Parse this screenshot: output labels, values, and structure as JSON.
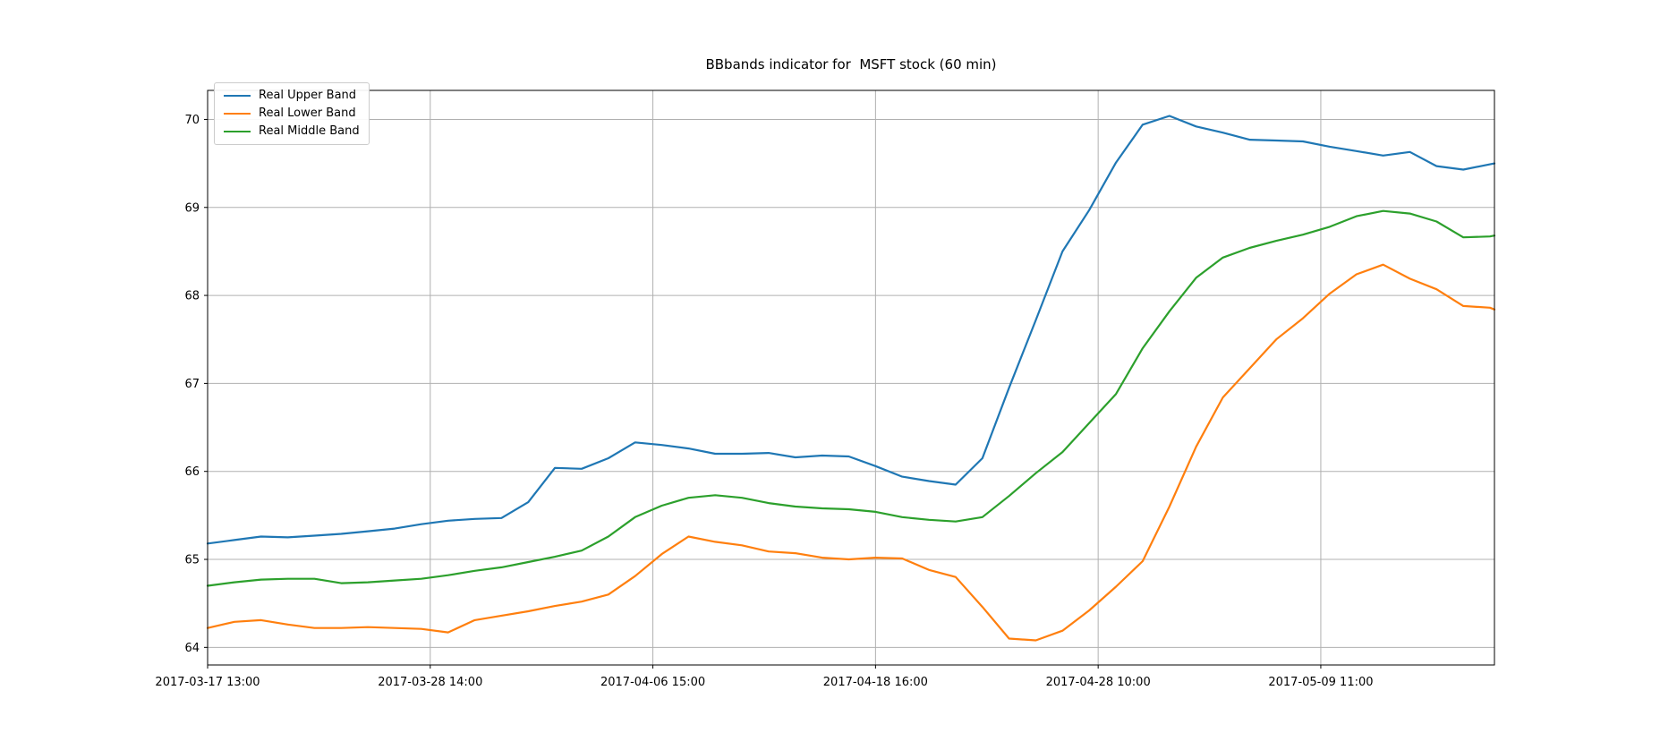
{
  "colors": {
    "background": "#ffffff",
    "grid": "#b0b0b0",
    "spine": "#000000",
    "text": "#000000",
    "upper_band": "#1f77b4",
    "lower_band": "#ff7f0e",
    "middle_band": "#2ca02c"
  },
  "chart_data": {
    "type": "line",
    "title": "BBbands indicator for  MSFT stock (60 min)",
    "xlabel": "",
    "ylabel": "",
    "grid": true,
    "legend_position": "upper left",
    "n_points": 290,
    "ylim": [
      63.8,
      70.33
    ],
    "y_ticks": [
      64,
      65,
      66,
      67,
      68,
      69,
      70
    ],
    "x_tick_indices": [
      0,
      50,
      100,
      150,
      200,
      250
    ],
    "x_tick_labels": [
      "2017-03-17 13:00",
      "2017-03-28 14:00",
      "2017-04-06 15:00",
      "2017-04-18 16:00",
      "2017-04-28 10:00",
      "2017-05-09 11:00"
    ],
    "series": [
      {
        "id": "upper",
        "name": "Real Upper Band",
        "color": "#1f77b4",
        "x": [
          0,
          6,
          12,
          18,
          24,
          30,
          36,
          42,
          48,
          54,
          60,
          66,
          72,
          78,
          84,
          90,
          96,
          102,
          108,
          114,
          120,
          126,
          132,
          138,
          144,
          150,
          156,
          162,
          168,
          174,
          180,
          186,
          192,
          198,
          204,
          210,
          216,
          222,
          228,
          234,
          240,
          246,
          252,
          258,
          264,
          270,
          276,
          282,
          288,
          289
        ],
        "values": [
          65.18,
          65.22,
          65.26,
          65.25,
          65.27,
          65.29,
          65.32,
          65.35,
          65.4,
          65.44,
          65.46,
          65.47,
          65.65,
          66.04,
          66.03,
          66.15,
          66.33,
          66.3,
          66.26,
          66.2,
          66.2,
          66.21,
          66.16,
          66.18,
          66.17,
          66.06,
          65.94,
          65.89,
          65.85,
          66.15,
          66.95,
          67.72,
          68.5,
          68.97,
          69.51,
          69.94,
          70.04,
          69.92,
          69.85,
          69.77,
          69.76,
          69.75,
          69.69,
          69.64,
          69.59,
          69.63,
          69.47,
          69.43,
          69.49,
          69.5
        ]
      },
      {
        "id": "lower",
        "name": "Real Lower Band",
        "color": "#ff7f0e",
        "x": [
          0,
          6,
          12,
          18,
          24,
          30,
          36,
          42,
          48,
          54,
          60,
          66,
          72,
          78,
          84,
          90,
          96,
          102,
          108,
          114,
          120,
          126,
          132,
          138,
          144,
          150,
          156,
          162,
          168,
          174,
          180,
          186,
          192,
          198,
          204,
          210,
          216,
          222,
          228,
          234,
          240,
          246,
          252,
          258,
          264,
          270,
          276,
          282,
          288,
          289
        ],
        "values": [
          64.22,
          64.29,
          64.31,
          64.26,
          64.22,
          64.22,
          64.23,
          64.22,
          64.21,
          64.17,
          64.31,
          64.36,
          64.41,
          64.47,
          64.52,
          64.6,
          64.81,
          65.06,
          65.26,
          65.2,
          65.16,
          65.09,
          65.07,
          65.02,
          65.0,
          65.02,
          65.01,
          64.88,
          64.8,
          64.46,
          64.1,
          64.08,
          64.19,
          64.42,
          64.69,
          64.98,
          65.6,
          66.28,
          66.84,
          67.17,
          67.5,
          67.74,
          68.02,
          68.24,
          68.35,
          68.19,
          68.07,
          67.88,
          67.86,
          67.84
        ]
      },
      {
        "id": "middle",
        "name": "Real Middle Band",
        "color": "#2ca02c",
        "x": [
          0,
          6,
          12,
          18,
          24,
          30,
          36,
          42,
          48,
          54,
          60,
          66,
          72,
          78,
          84,
          90,
          96,
          102,
          108,
          114,
          120,
          126,
          132,
          138,
          144,
          150,
          156,
          162,
          168,
          174,
          180,
          186,
          192,
          198,
          204,
          210,
          216,
          222,
          228,
          234,
          240,
          246,
          252,
          258,
          264,
          270,
          276,
          282,
          288,
          289
        ],
        "values": [
          64.7,
          64.74,
          64.77,
          64.78,
          64.78,
          64.73,
          64.74,
          64.76,
          64.78,
          64.82,
          64.87,
          64.91,
          64.97,
          65.03,
          65.1,
          65.26,
          65.48,
          65.61,
          65.7,
          65.73,
          65.7,
          65.64,
          65.6,
          65.58,
          65.57,
          65.54,
          65.48,
          65.45,
          65.43,
          65.48,
          65.72,
          65.98,
          66.22,
          66.55,
          66.88,
          67.4,
          67.82,
          68.2,
          68.43,
          68.54,
          68.62,
          68.69,
          68.78,
          68.9,
          68.96,
          68.93,
          68.84,
          68.66,
          68.67,
          68.68
        ]
      }
    ]
  }
}
